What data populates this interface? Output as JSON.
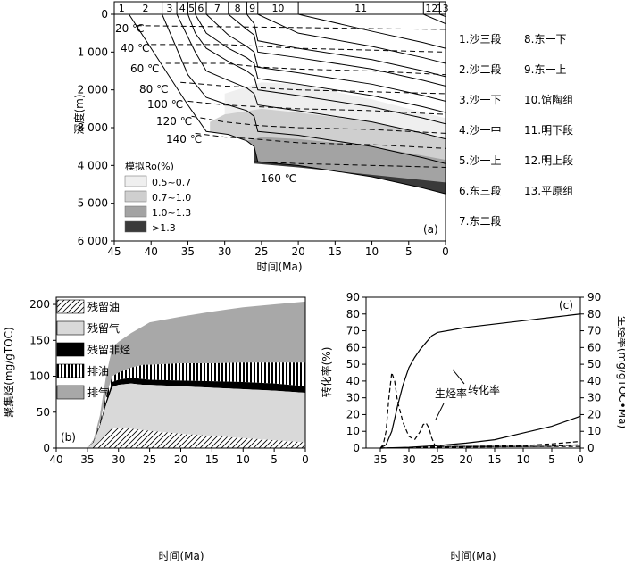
{
  "chart_data": [
    {
      "panel": "(a)",
      "type": "area",
      "xlabel": "时间(Ma)",
      "ylabel": "深度(m)",
      "xlim": [
        45,
        0
      ],
      "ylim": [
        0,
        6000
      ],
      "x_ticks": [
        "45",
        "40",
        "35",
        "30",
        "25",
        "20",
        "15",
        "10",
        "5",
        "0"
      ],
      "y_ticks": [
        "0",
        "1 000",
        "2 000",
        "3 000",
        "4 000",
        "5 000",
        "6 000"
      ],
      "top_numbers": [
        "1",
        "2",
        "3",
        "4",
        "5",
        "6",
        "7",
        "8",
        "9",
        "10",
        "11",
        "12",
        "13"
      ],
      "top_boundaries": [
        45,
        43,
        38.5,
        36.5,
        35,
        34,
        32.5,
        29.5,
        27,
        25.5,
        20,
        3,
        0.8,
        0
      ],
      "formations": [
        "1.沙三段",
        "2.沙二段",
        "3.沙一下",
        "4.沙一中",
        "5.沙一上",
        "6.东三段",
        "7.东二段",
        "8.东一下",
        "9.东一上",
        "10.馆陶组",
        "11.明下段",
        "12.明上段",
        "13.平原组"
      ],
      "isotherm_labels": [
        "20 ℃",
        "40 ℃",
        "60 ℃",
        "80 ℃",
        "100 ℃",
        "120 ℃",
        "140 ℃",
        "160 ℃"
      ],
      "legend_title": "模拟Ro(%)",
      "legend_items": [
        "0.5~0.7",
        "0.7~1.0",
        "1.0~1.3",
        ">1.3"
      ],
      "legend_colors": [
        "#efefef",
        "#cfcfcf",
        "#a3a3a3",
        "#3a3a3a"
      ],
      "burial_curves": [
        {
          "x": [
            43,
            35,
            32.5,
            29.5,
            27,
            26,
            25.5,
            20,
            10,
            3,
            0
          ],
          "y": [
            0,
            2400,
            3100,
            3180,
            3350,
            3500,
            3900,
            4000,
            4300,
            4600,
            4750
          ]
        },
        {
          "x": [
            38.5,
            35,
            32.5,
            29.5,
            27,
            26,
            25.5,
            20,
            10,
            3,
            0
          ],
          "y": [
            0,
            1600,
            2200,
            2400,
            2550,
            2700,
            3100,
            3200,
            3500,
            3800,
            3950
          ]
        },
        {
          "x": [
            36.5,
            34,
            32.5,
            29.5,
            27,
            26,
            25.5,
            20,
            10,
            3,
            0
          ],
          "y": [
            0,
            1000,
            1500,
            1750,
            1950,
            2100,
            2400,
            2550,
            2850,
            3150,
            3300
          ]
        },
        {
          "x": [
            35,
            34,
            32.5,
            29.5,
            27,
            26,
            25.5,
            20,
            10,
            3,
            0
          ],
          "y": [
            0,
            500,
            900,
            1250,
            1500,
            1650,
            2000,
            2150,
            2450,
            2750,
            2900
          ]
        },
        {
          "x": [
            34,
            32.5,
            29.5,
            27,
            26,
            25.5,
            20,
            10,
            3,
            0
          ],
          "y": [
            0,
            500,
            900,
            1150,
            1300,
            1700,
            1850,
            2150,
            2450,
            2600
          ]
        },
        {
          "x": [
            32.5,
            29.5,
            27,
            26,
            25.5,
            20,
            10,
            3,
            0
          ],
          "y": [
            0,
            550,
            850,
            1000,
            1400,
            1550,
            1850,
            2150,
            2300
          ]
        },
        {
          "x": [
            29.5,
            27,
            26,
            25.5,
            20,
            10,
            3,
            0
          ],
          "y": [
            0,
            400,
            550,
            1000,
            1150,
            1450,
            1750,
            1900
          ]
        },
        {
          "x": [
            27,
            26,
            25.5,
            20,
            10,
            3,
            0
          ],
          "y": [
            0,
            250,
            700,
            900,
            1200,
            1500,
            1650
          ]
        },
        {
          "x": [
            25.5,
            20,
            10,
            3,
            0
          ],
          "y": [
            0,
            500,
            850,
            1150,
            1300
          ]
        },
        {
          "x": [
            20,
            10,
            3,
            0
          ],
          "y": [
            0,
            450,
            750,
            900
          ]
        },
        {
          "x": [
            3,
            0
          ],
          "y": [
            0,
            250
          ]
        },
        {
          "x": [
            0.8,
            0
          ],
          "y": [
            0,
            60
          ]
        }
      ],
      "isotherms": [
        {
          "label": "20 ℃",
          "x": [
            42,
            30,
            20,
            10,
            0
          ],
          "y": [
            300,
            330,
            350,
            380,
            400
          ]
        },
        {
          "label": "40 ℃",
          "x": [
            40,
            30,
            20,
            10,
            0
          ],
          "y": [
            800,
            800,
            900,
            950,
            1000
          ]
        },
        {
          "label": "60 ℃",
          "x": [
            38,
            30,
            25,
            20,
            10,
            0
          ],
          "y": [
            1300,
            1300,
            1400,
            1450,
            1500,
            1600
          ]
        },
        {
          "label": "80 ℃",
          "x": [
            36,
            30,
            25,
            20,
            10,
            0
          ],
          "y": [
            1800,
            1900,
            1950,
            2000,
            2050,
            2100
          ]
        },
        {
          "label": "100 ℃",
          "x": [
            35,
            30,
            25,
            20,
            10,
            0
          ],
          "y": [
            2300,
            2400,
            2450,
            2500,
            2550,
            2650
          ]
        },
        {
          "label": "120 ℃",
          "x": [
            34.5,
            30,
            25,
            20,
            10,
            0
          ],
          "y": [
            2700,
            2850,
            2950,
            3000,
            3050,
            3150
          ]
        },
        {
          "label": "140 ℃",
          "x": [
            34,
            30,
            26,
            20,
            10,
            0
          ],
          "y": [
            3150,
            3250,
            3300,
            3400,
            3450,
            3550
          ]
        },
        {
          "label": "160 ℃",
          "x": [
            26,
            20,
            10,
            0
          ],
          "y": [
            3900,
            3950,
            4000,
            4050
          ]
        }
      ]
    },
    {
      "panel": "(b)",
      "type": "area",
      "xlabel": "时间(Ma)",
      "ylabel": "聚集烃(mg/gTOC)",
      "xlim": [
        40,
        0
      ],
      "ylim": [
        0,
        200
      ],
      "x_ticks": [
        "40",
        "35",
        "30",
        "25",
        "20",
        "15",
        "10",
        "5",
        "0"
      ],
      "y_ticks": [
        "0",
        "50",
        "100",
        "150",
        "200"
      ],
      "x": [
        35,
        34,
        33,
        32,
        31,
        30,
        28,
        26,
        25,
        20,
        15,
        10,
        5,
        0
      ],
      "series": [
        {
          "name": "残留油",
          "cumulative": [
            0,
            2,
            10,
            20,
            28,
            28,
            27,
            25,
            24,
            20,
            17,
            14,
            11,
            8
          ]
        },
        {
          "name": "残留气",
          "cumulative": [
            0,
            8,
            30,
            60,
            85,
            88,
            90,
            88,
            88,
            86,
            84,
            82,
            80,
            77
          ]
        },
        {
          "name": "残留非烃",
          "cumulative": [
            0,
            9,
            32,
            65,
            92,
            95,
            98,
            96,
            95,
            94,
            93,
            92,
            90,
            86
          ]
        },
        {
          "name": "排油",
          "cumulative": [
            0,
            10,
            35,
            72,
            100,
            105,
            112,
            116,
            116,
            118,
            118,
            119,
            119,
            119
          ]
        },
        {
          "name": "排气",
          "cumulative": [
            0,
            12,
            45,
            100,
            140,
            148,
            160,
            170,
            175,
            183,
            190,
            196,
            200,
            204
          ]
        }
      ]
    },
    {
      "panel": "(c)",
      "type": "line",
      "xlabel": "时间(Ma)",
      "ylabel": "转化率(%)",
      "ylabel_right": "生烃率(mg/gTOC•Ma)",
      "xlim": [
        37.5,
        0
      ],
      "ylim": [
        0,
        90
      ],
      "x_ticks": [
        "35",
        "30",
        "25",
        "20",
        "15",
        "10",
        "5",
        "0"
      ],
      "y_ticks": [
        "0",
        "10",
        "20",
        "30",
        "40",
        "50",
        "60",
        "70",
        "80",
        "90"
      ],
      "series": [
        {
          "name": "转化率",
          "style": "solid",
          "x": [
            35,
            34,
            33,
            32,
            31,
            30,
            29,
            28,
            27,
            26,
            25,
            20,
            15,
            10,
            5,
            0
          ],
          "y": [
            0,
            2,
            10,
            25,
            38,
            48,
            54,
            59,
            63,
            67,
            69,
            72,
            74,
            76,
            78,
            80
          ]
        },
        {
          "name": "生烃率",
          "style": "dashed",
          "x": [
            35,
            34.5,
            34,
            33.5,
            33,
            32.5,
            32,
            31,
            30,
            29,
            28,
            27.5,
            27,
            26.5,
            26,
            25.5,
            25,
            20,
            10,
            0
          ],
          "y": [
            0,
            2,
            10,
            30,
            45,
            40,
            28,
            15,
            7,
            5,
            10,
            14,
            15,
            12,
            6,
            2,
            1,
            1,
            1,
            1
          ]
        },
        {
          "style": "solid",
          "x": [
            35,
            30,
            25,
            20,
            15,
            10,
            5,
            0
          ],
          "y": [
            0,
            0.5,
            1.5,
            3,
            5,
            9,
            13,
            19
          ]
        },
        {
          "style": "dashed",
          "x": [
            35,
            30,
            25,
            20,
            10,
            5,
            0
          ],
          "y": [
            0,
            0.3,
            0.8,
            1,
            1.5,
            2.5,
            4
          ]
        },
        {
          "style": "dashed",
          "x": [
            35,
            30,
            25,
            20,
            10,
            5,
            0
          ],
          "y": [
            0,
            0.2,
            0.4,
            0.6,
            0.9,
            1.2,
            2
          ]
        }
      ],
      "annotations": [
        "转化率",
        "生烃率"
      ]
    }
  ]
}
